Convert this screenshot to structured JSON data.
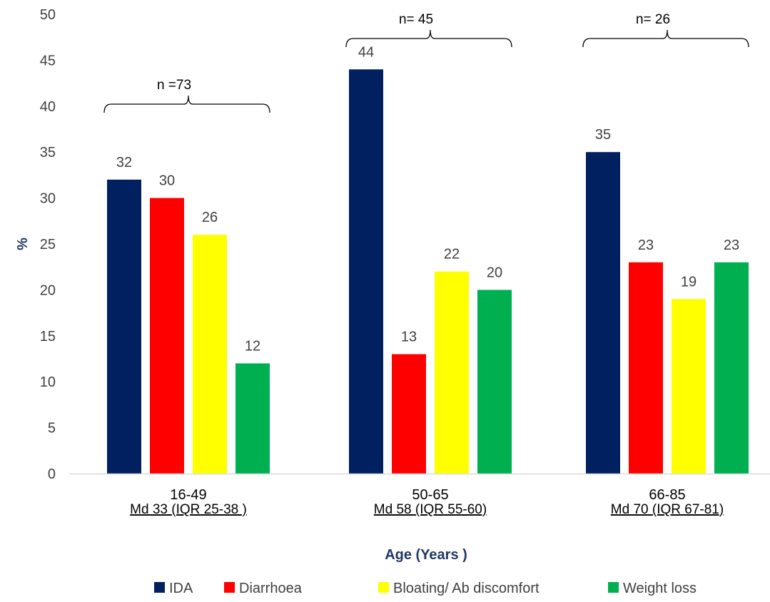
{
  "chart_data": {
    "type": "bar",
    "title": "",
    "xlabel": "Age (Years )",
    "ylabel": "%",
    "ylim": [
      0,
      50
    ],
    "ytick_step": 5,
    "grid": false,
    "legend_position": "bottom",
    "categories": [
      "16-49",
      "50-65",
      "66-85"
    ],
    "category_sublabels": [
      "Md 33 (IQR 25-38 )",
      "Md 58 (IQR 55-60)",
      "Md 70 (IQR 67-81)"
    ],
    "group_annotations": [
      "n =73",
      "n= 45",
      "n= 26"
    ],
    "series": [
      {
        "name": "IDA",
        "color": "#002060",
        "values": [
          32,
          44,
          35
        ]
      },
      {
        "name": "Diarrhoea",
        "color": "#FF0000",
        "values": [
          30,
          13,
          23
        ]
      },
      {
        "name": "Bloating/ Ab discomfort",
        "color": "#FFFF00",
        "values": [
          26,
          22,
          19
        ]
      },
      {
        "name": "Weight loss",
        "color": "#00B050",
        "values": [
          12,
          20,
          23
        ]
      }
    ],
    "colors": {
      "axis_title": "#1F3864",
      "text": "#404040",
      "axis_line": "#D9D9D9",
      "bracket": "#000000"
    }
  }
}
